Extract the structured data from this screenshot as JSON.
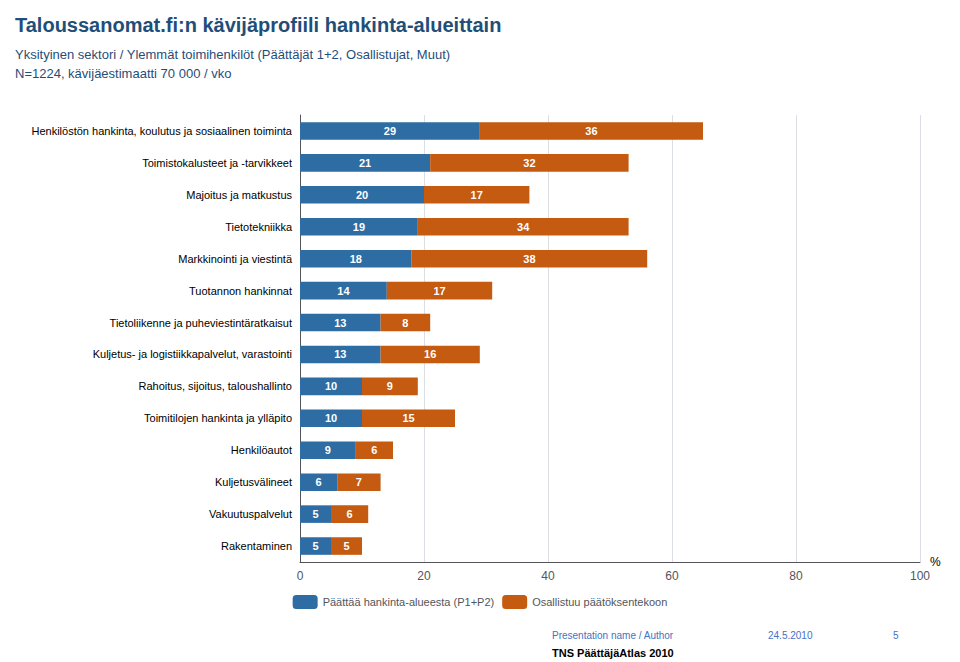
{
  "chart_data": {
    "type": "bar",
    "orientation": "horizontal",
    "stacked": true,
    "data_labels": true,
    "title": "Taloussanomat.fi:n kävijäprofiili hankinta-alueittain",
    "subtitle": [
      "Yksityinen sektori / Ylemmät toimihenkilöt (Päättäjät 1+2, Osallistujat, Muut)",
      "N=1224, kävijäestimaatti 70 000 / vko"
    ],
    "xlabel": "%",
    "categories": [
      "Henkilöstön hankinta, koulutus ja sosiaalinen toiminta",
      "Toimistokalusteet ja -tarvikkeet",
      "Majoitus ja matkustus",
      "Tietotekniikka",
      "Markkinointi ja viestintä",
      "Tuotannon hankinnat",
      "Tietoliikenne ja puheviestintäratkaisut",
      "Kuljetus- ja logistiikkapalvelut, varastointi",
      "Rahoitus, sijoitus, taloushallinto",
      "Toimitilojen hankinta ja ylläpito",
      "Henkilöautot",
      "Kuljetusvälineet",
      "Vakuutuspalvelut",
      "Rakentaminen"
    ],
    "series": [
      {
        "name": "Päättää hankinta-alueesta (P1+P2)",
        "color": "#2E6DA4",
        "values": [
          29,
          21,
          20,
          19,
          18,
          14,
          13,
          13,
          10,
          10,
          9,
          6,
          5,
          5
        ]
      },
      {
        "name": "Osallistuu päätöksentekoon",
        "color": "#C55A11",
        "values": [
          36,
          32,
          17,
          34,
          38,
          17,
          8,
          16,
          9,
          15,
          6,
          7,
          6,
          5
        ]
      }
    ],
    "xlim": [
      0,
      100
    ],
    "xticks": [
      0,
      20,
      40,
      60,
      80,
      100
    ],
    "grid": true,
    "legend": "bottom",
    "annotations": [
      "Presentation name / Author",
      "24.5.2010",
      "5",
      "TNS PäättäjäAtlas 2010"
    ]
  }
}
